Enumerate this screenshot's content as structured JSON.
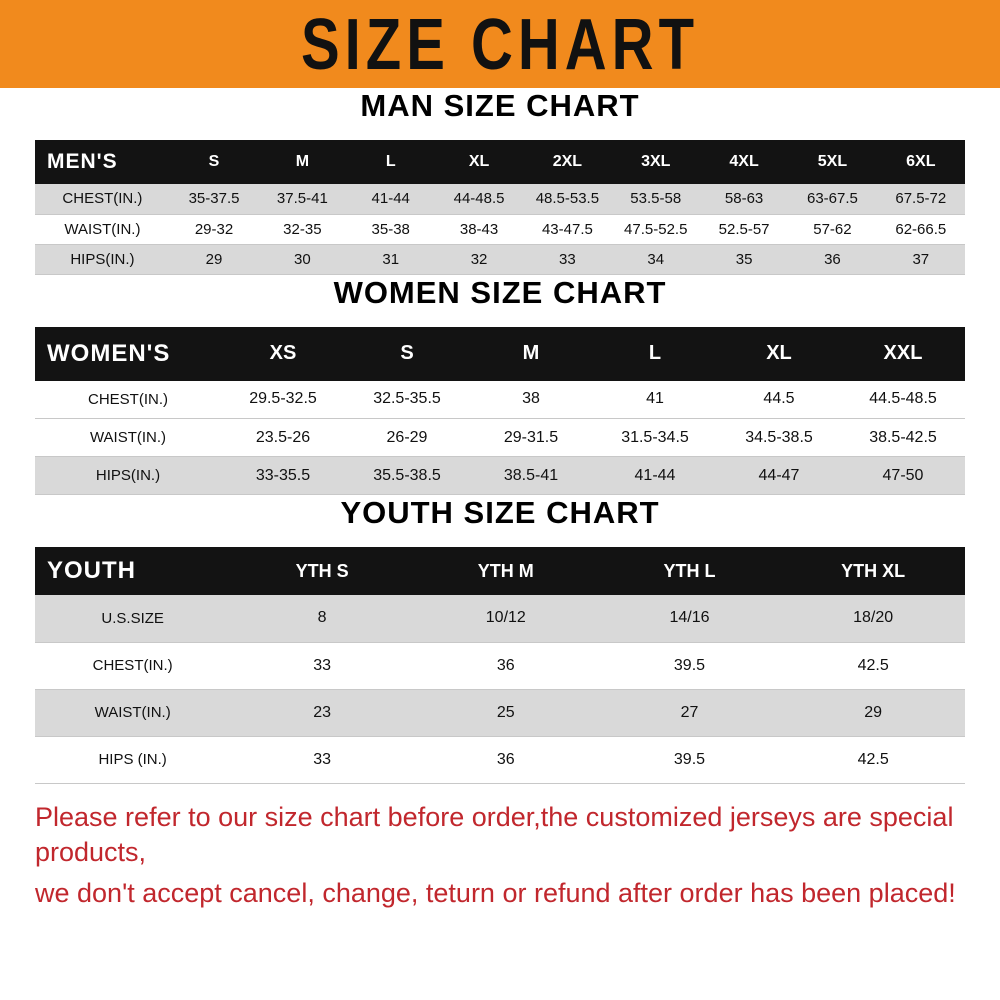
{
  "banner": {
    "title": "SIZE CHART",
    "background_color": "#F18A1D",
    "text_color": "#111111"
  },
  "sections": [
    {
      "id": "men",
      "heading": "MAN SIZE CHART",
      "table": {
        "header": [
          "MEN'S",
          "S",
          "M",
          "L",
          "XL",
          "2XL",
          "3XL",
          "4XL",
          "5XL",
          "6XL"
        ],
        "rows": [
          [
            "CHEST(IN.)",
            "35-37.5",
            "37.5-41",
            "41-44",
            "44-48.5",
            "48.5-53.5",
            "53.5-58",
            "58-63",
            "63-67.5",
            "67.5-72"
          ],
          [
            "WAIST(IN.)",
            "29-32",
            "32-35",
            "35-38",
            "38-43",
            "43-47.5",
            "47.5-52.5",
            "52.5-57",
            "57-62",
            "62-66.5"
          ],
          [
            "HIPS(IN.)",
            "29",
            "30",
            "31",
            "32",
            "33",
            "34",
            "35",
            "36",
            "37"
          ]
        ]
      }
    },
    {
      "id": "women",
      "heading": "WOMEN SIZE CHART",
      "table": {
        "header": [
          "WOMEN'S",
          "XS",
          "S",
          "M",
          "L",
          "XL",
          "XXL"
        ],
        "rows": [
          [
            "CHEST(IN.)",
            "29.5-32.5",
            "32.5-35.5",
            "38",
            "41",
            "44.5",
            "44.5-48.5"
          ],
          [
            "WAIST(IN.)",
            "23.5-26",
            "26-29",
            "29-31.5",
            "31.5-34.5",
            "34.5-38.5",
            "38.5-42.5"
          ],
          [
            "HIPS(IN.)",
            "33-35.5",
            "35.5-38.5",
            "38.5-41",
            "41-44",
            "44-47",
            "47-50"
          ]
        ]
      }
    },
    {
      "id": "youth",
      "heading": "YOUTH SIZE CHART",
      "table": {
        "header": [
          "YOUTH",
          "YTH S",
          "YTH M",
          "YTH L",
          "YTH XL"
        ],
        "rows": [
          [
            "U.S.SIZE",
            "8",
            "10/12",
            "14/16",
            "18/20"
          ],
          [
            "CHEST(IN.)",
            "33",
            "36",
            "39.5",
            "42.5"
          ],
          [
            "WAIST(IN.)",
            "23",
            "25",
            "27",
            "29"
          ],
          [
            "HIPS (IN.)",
            "33",
            "36",
            "39.5",
            "42.5"
          ]
        ]
      }
    }
  ],
  "footer": {
    "line1": "Please refer to our size chart before order,the customized jerseys are special products,",
    "line2": "we don't accept cancel, change, teturn or refund after order has been placed!",
    "text_color": "#C1272D"
  },
  "colors": {
    "table_header_bg": "#131313",
    "table_stripe_bg": "#d9d9d9"
  }
}
